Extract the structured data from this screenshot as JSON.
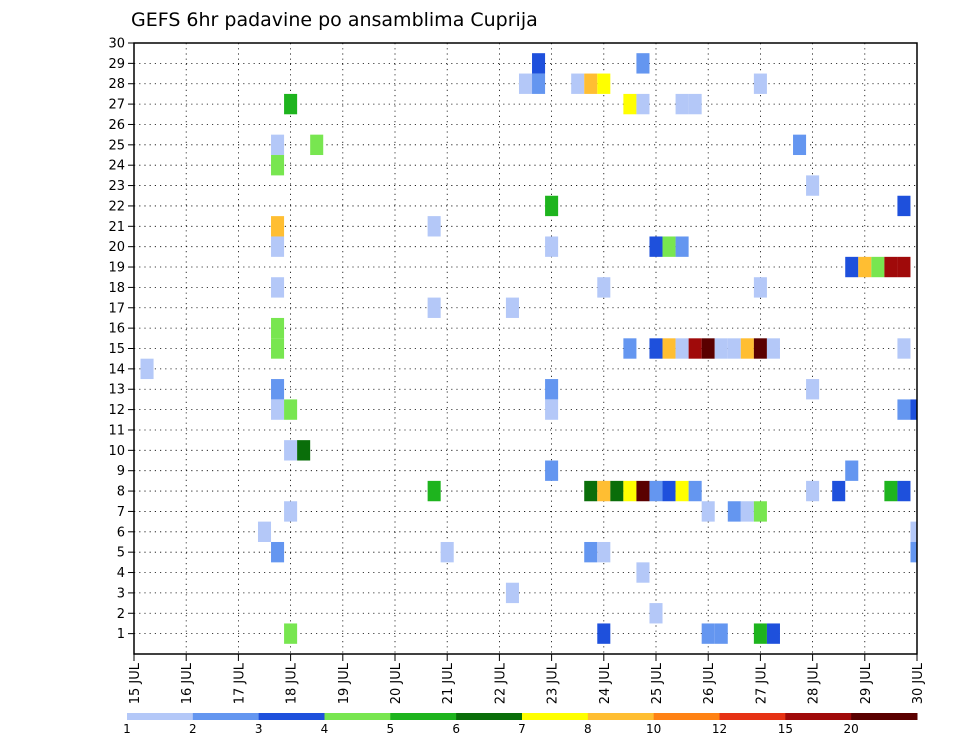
{
  "chart_data": {
    "type": "heatmap",
    "title": "GEFS 6hr padavine po ansamblima Cuprija",
    "x_range": [
      15,
      30
    ],
    "y_range": [
      0,
      30
    ],
    "x_ticks": [
      {
        "x": 15,
        "label": "15 JUL"
      },
      {
        "x": 16,
        "label": "16 JUL"
      },
      {
        "x": 17,
        "label": "17 JUL"
      },
      {
        "x": 18,
        "label": "18 JUL"
      },
      {
        "x": 19,
        "label": "19 JUL"
      },
      {
        "x": 20,
        "label": "20 JUL"
      },
      {
        "x": 21,
        "label": "21 JUL"
      },
      {
        "x": 22,
        "label": "22 JUL"
      },
      {
        "x": 23,
        "label": "23 JUL"
      },
      {
        "x": 24,
        "label": "24 JUL"
      },
      {
        "x": 25,
        "label": "25 JUL"
      },
      {
        "x": 26,
        "label": "26 JUL"
      },
      {
        "x": 27,
        "label": "27 JUL"
      },
      {
        "x": 28,
        "label": "28 JUL"
      },
      {
        "x": 29,
        "label": "29 JUL"
      },
      {
        "x": 30,
        "label": "30 JUL"
      }
    ],
    "y_ticks": [
      "1",
      "2",
      "3",
      "4",
      "5",
      "6",
      "7",
      "8",
      "9",
      "10",
      "11",
      "12",
      "13",
      "14",
      "15",
      "16",
      "17",
      "18",
      "19",
      "20",
      "21",
      "22",
      "23",
      "24",
      "25",
      "26",
      "27",
      "28",
      "29",
      "30"
    ],
    "grid": true,
    "colorbar": {
      "position": "bottom",
      "colors": [
        "#b4c8f8",
        "#6496f0",
        "#1e50dc",
        "#78e650",
        "#1eb41e",
        "#0a6e0a",
        "#ffff00",
        "#ffbe32",
        "#ff8214",
        "#e63214",
        "#a00a0a",
        "#5a0000"
      ],
      "bounds": [
        1,
        2,
        3,
        4,
        5,
        6,
        7,
        8,
        10,
        12,
        15,
        20
      ],
      "labels": [
        "1",
        "2",
        "3",
        "4",
        "5",
        "6",
        "7",
        "8",
        "10",
        "12",
        "15",
        "20"
      ]
    },
    "cells": [
      {
        "x": 22.75,
        "y": 29,
        "c": 2
      },
      {
        "x": 24.75,
        "y": 29,
        "c": 1
      },
      {
        "x": 22.5,
        "y": 28,
        "c": 0
      },
      {
        "x": 22.75,
        "y": 28,
        "c": 1
      },
      {
        "x": 23.5,
        "y": 28,
        "c": 0
      },
      {
        "x": 23.75,
        "y": 28,
        "c": 7
      },
      {
        "x": 24.0,
        "y": 28,
        "c": 6
      },
      {
        "x": 27.0,
        "y": 28,
        "c": 0
      },
      {
        "x": 18.0,
        "y": 27,
        "c": 4
      },
      {
        "x": 24.5,
        "y": 27,
        "c": 6
      },
      {
        "x": 24.75,
        "y": 27,
        "c": 0
      },
      {
        "x": 25.5,
        "y": 27,
        "c": 0
      },
      {
        "x": 25.75,
        "y": 27,
        "c": 0
      },
      {
        "x": 17.75,
        "y": 25,
        "c": 0
      },
      {
        "x": 18.5,
        "y": 25,
        "c": 3
      },
      {
        "x": 27.75,
        "y": 25,
        "c": 1
      },
      {
        "x": 17.75,
        "y": 24,
        "c": 3
      },
      {
        "x": 28.0,
        "y": 23,
        "c": 0
      },
      {
        "x": 23.0,
        "y": 22,
        "c": 4
      },
      {
        "x": 29.75,
        "y": 22,
        "c": 2
      },
      {
        "x": 17.75,
        "y": 21,
        "c": 7
      },
      {
        "x": 20.75,
        "y": 21,
        "c": 0
      },
      {
        "x": 17.75,
        "y": 20,
        "c": 0
      },
      {
        "x": 23.0,
        "y": 20,
        "c": 0
      },
      {
        "x": 25.0,
        "y": 20,
        "c": 2
      },
      {
        "x": 25.25,
        "y": 20,
        "c": 3
      },
      {
        "x": 25.5,
        "y": 20,
        "c": 1
      },
      {
        "x": 28.75,
        "y": 19,
        "c": 2
      },
      {
        "x": 29.0,
        "y": 19,
        "c": 7
      },
      {
        "x": 29.25,
        "y": 19,
        "c": 3
      },
      {
        "x": 29.5,
        "y": 19,
        "c": 10
      },
      {
        "x": 29.75,
        "y": 19,
        "c": 10
      },
      {
        "x": 17.75,
        "y": 18,
        "c": 0
      },
      {
        "x": 24.0,
        "y": 18,
        "c": 0
      },
      {
        "x": 27.0,
        "y": 18,
        "c": 0
      },
      {
        "x": 20.75,
        "y": 17,
        "c": 0
      },
      {
        "x": 22.25,
        "y": 17,
        "c": 0
      },
      {
        "x": 17.75,
        "y": 15,
        "c": 3
      },
      {
        "x": 17.75,
        "y": 16,
        "c": 3
      },
      {
        "x": 24.5,
        "y": 15,
        "c": 1
      },
      {
        "x": 25.0,
        "y": 15,
        "c": 2
      },
      {
        "x": 25.25,
        "y": 15,
        "c": 7
      },
      {
        "x": 25.5,
        "y": 15,
        "c": 0
      },
      {
        "x": 25.75,
        "y": 15,
        "c": 10
      },
      {
        "x": 26.0,
        "y": 15,
        "c": 11
      },
      {
        "x": 26.25,
        "y": 15,
        "c": 0
      },
      {
        "x": 26.5,
        "y": 15,
        "c": 0
      },
      {
        "x": 26.75,
        "y": 15,
        "c": 7
      },
      {
        "x": 27.0,
        "y": 15,
        "c": 11
      },
      {
        "x": 27.25,
        "y": 15,
        "c": 0
      },
      {
        "x": 29.75,
        "y": 15,
        "c": 0
      },
      {
        "x": 15.25,
        "y": 14,
        "c": 0
      },
      {
        "x": 17.75,
        "y": 13,
        "c": 1
      },
      {
        "x": 23.0,
        "y": 13,
        "c": 1
      },
      {
        "x": 28.0,
        "y": 13,
        "c": 0
      },
      {
        "x": 17.75,
        "y": 12,
        "c": 0
      },
      {
        "x": 18.0,
        "y": 12,
        "c": 3
      },
      {
        "x": 23.0,
        "y": 12,
        "c": 0
      },
      {
        "x": 29.75,
        "y": 12,
        "c": 1
      },
      {
        "x": 30.0,
        "y": 12,
        "c": 2
      },
      {
        "x": 18.0,
        "y": 10,
        "c": 0
      },
      {
        "x": 18.25,
        "y": 10,
        "c": 5
      },
      {
        "x": 23.0,
        "y": 9,
        "c": 1
      },
      {
        "x": 28.75,
        "y": 9,
        "c": 1
      },
      {
        "x": 20.75,
        "y": 8,
        "c": 4
      },
      {
        "x": 23.75,
        "y": 8,
        "c": 5
      },
      {
        "x": 24.0,
        "y": 8,
        "c": 7
      },
      {
        "x": 24.25,
        "y": 8,
        "c": 5
      },
      {
        "x": 24.5,
        "y": 8,
        "c": 6
      },
      {
        "x": 24.75,
        "y": 8,
        "c": 11
      },
      {
        "x": 25.0,
        "y": 8,
        "c": 1
      },
      {
        "x": 25.25,
        "y": 8,
        "c": 2
      },
      {
        "x": 25.5,
        "y": 8,
        "c": 6
      },
      {
        "x": 25.75,
        "y": 8,
        "c": 1
      },
      {
        "x": 28.0,
        "y": 8,
        "c": 0
      },
      {
        "x": 28.5,
        "y": 8,
        "c": 2
      },
      {
        "x": 29.5,
        "y": 8,
        "c": 4
      },
      {
        "x": 29.75,
        "y": 8,
        "c": 2
      },
      {
        "x": 18.0,
        "y": 7,
        "c": 0
      },
      {
        "x": 26.0,
        "y": 7,
        "c": 0
      },
      {
        "x": 26.5,
        "y": 7,
        "c": 1
      },
      {
        "x": 26.75,
        "y": 7,
        "c": 0
      },
      {
        "x": 27.0,
        "y": 7,
        "c": 3
      },
      {
        "x": 17.5,
        "y": 6,
        "c": 0
      },
      {
        "x": 30.0,
        "y": 6,
        "c": 0
      },
      {
        "x": 17.75,
        "y": 5,
        "c": 1
      },
      {
        "x": 21.0,
        "y": 5,
        "c": 0
      },
      {
        "x": 23.75,
        "y": 5,
        "c": 1
      },
      {
        "x": 24.0,
        "y": 5,
        "c": 0
      },
      {
        "x": 30.0,
        "y": 5,
        "c": 1
      },
      {
        "x": 24.75,
        "y": 4,
        "c": 0
      },
      {
        "x": 22.25,
        "y": 3,
        "c": 0
      },
      {
        "x": 25.0,
        "y": 2,
        "c": 0
      },
      {
        "x": 18.0,
        "y": 1,
        "c": 3
      },
      {
        "x": 24.0,
        "y": 1,
        "c": 2
      },
      {
        "x": 26.0,
        "y": 1,
        "c": 1
      },
      {
        "x": 26.25,
        "y": 1,
        "c": 1
      },
      {
        "x": 27.0,
        "y": 1,
        "c": 4
      },
      {
        "x": 27.25,
        "y": 1,
        "c": 2
      }
    ]
  }
}
